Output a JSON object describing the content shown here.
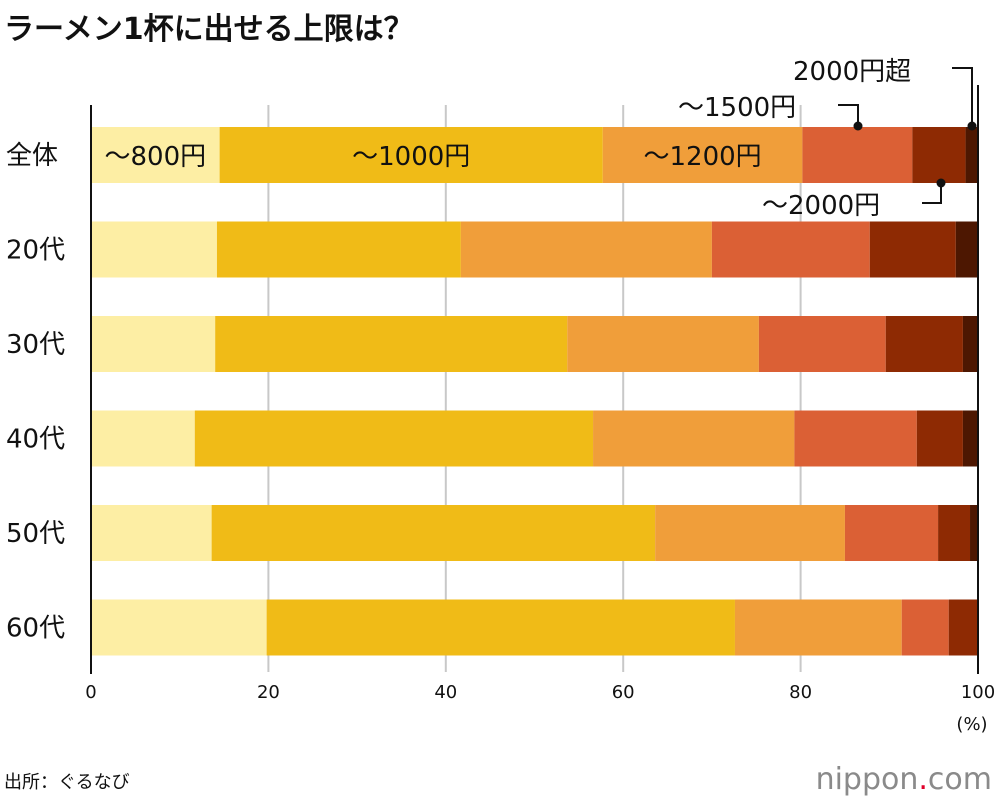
{
  "chart_data": {
    "type": "bar",
    "orientation": "horizontal",
    "stacked": true,
    "title": "ラーメン1杯に出せる上限は？",
    "categories": [
      "全体",
      "20代",
      "30代",
      "40代",
      "50代",
      "60代"
    ],
    "series": [
      {
        "name": "～800円",
        "color": "#FDEEA4",
        "values": [
          14.5,
          14.2,
          14.0,
          11.7,
          13.6,
          19.8
        ]
      },
      {
        "name": "～1000円",
        "color": "#F0BB17",
        "values": [
          43.2,
          27.5,
          39.7,
          44.9,
          50.0,
          52.8
        ]
      },
      {
        "name": "～1200円",
        "color": "#F09E3A",
        "values": [
          22.5,
          28.3,
          21.6,
          22.7,
          21.4,
          18.8
        ]
      },
      {
        "name": "～1500円",
        "color": "#DB6035",
        "values": [
          12.4,
          17.8,
          14.3,
          13.8,
          10.5,
          5.3
        ]
      },
      {
        "name": "～2000円",
        "color": "#8E2A03",
        "values": [
          6.0,
          9.7,
          8.7,
          5.2,
          3.6,
          3.3
        ]
      },
      {
        "name": "2000円超",
        "color": "#4D1701",
        "values": [
          1.4,
          2.5,
          1.7,
          1.7,
          0.9,
          0
        ]
      }
    ],
    "xlim": [
      0,
      100
    ],
    "xticks": [
      "0",
      "20",
      "40",
      "60",
      "80",
      "100"
    ],
    "xunit": "(%)",
    "grid": true,
    "legend": "inline labels on first bar"
  },
  "source": "出所：ぐるなび",
  "logo": {
    "main": "nippon",
    "dot": ".",
    "tld": "com"
  }
}
